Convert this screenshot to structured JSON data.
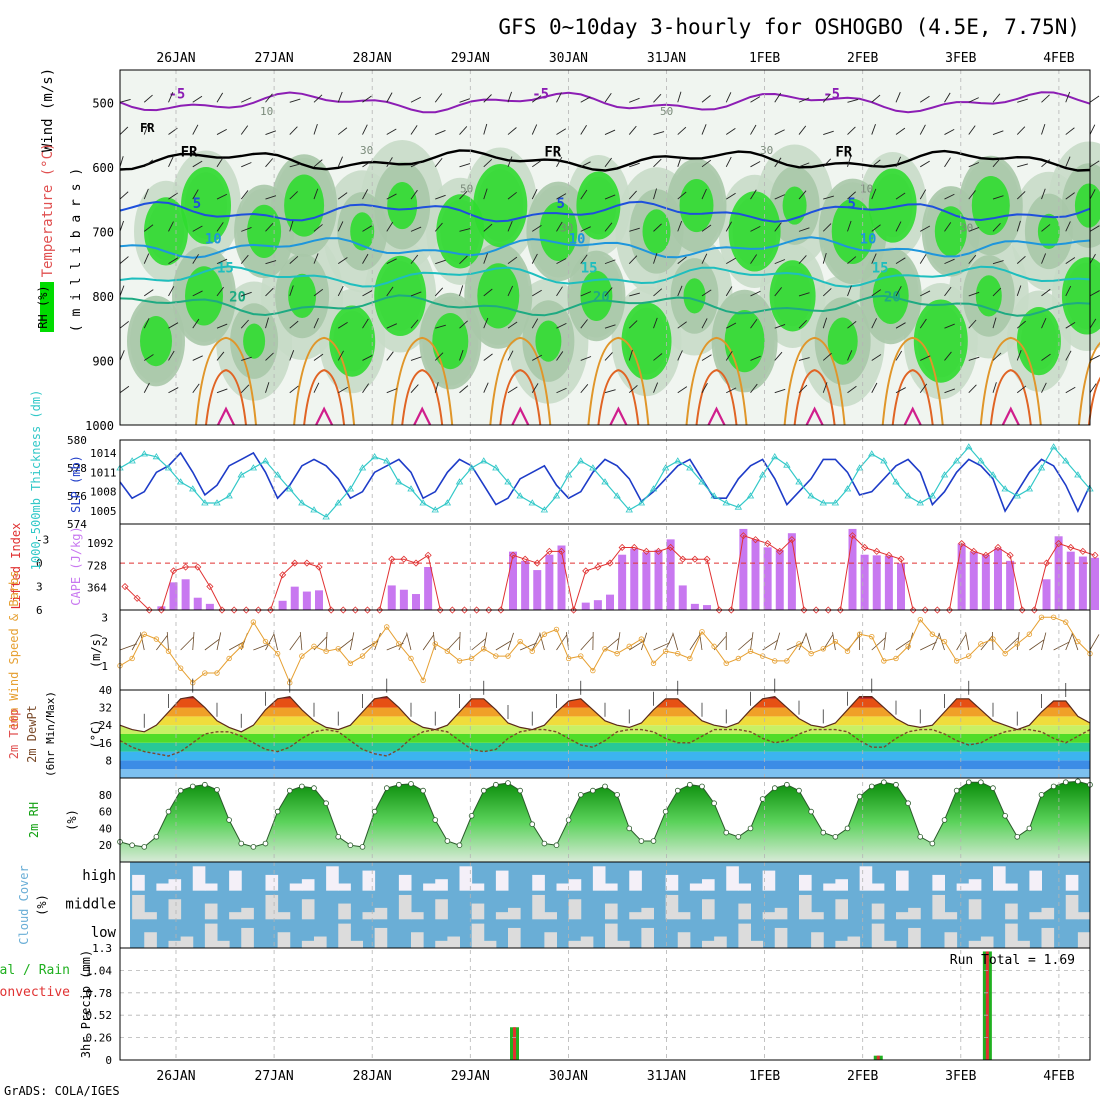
{
  "title": "GFS 0~10day 3-hourly for OSHOGBO (4.5E, 7.75N)",
  "footer": "GrADS: COLA/IGES",
  "dates": [
    "26JAN",
    "27JAN",
    "28JAN",
    "29JAN",
    "30JAN",
    "31JAN",
    "1FEB",
    "2FEB",
    "3FEB",
    "4FEB"
  ],
  "colors": {
    "frame": "#000000",
    "grid": "#b4b4b4",
    "rh_green": "#00dc00",
    "rh_mid": "#a0c8a0",
    "slp": "#1e3cc8",
    "thickness": "#32c8c8",
    "cape": "#c878f0",
    "lifted_index": "#e03232",
    "wind_speed": "#e6a032",
    "rh2m": "#10a010",
    "cloud_blue": "#6aaed6",
    "cloud_light": "#dcdcdc",
    "precip_total": "#20b020",
    "precip_conv": "#e03232"
  },
  "labels": {
    "upper_wind": "Wind (m/s)",
    "upper_temp": "Temperature (°C)",
    "upper_rh": "RH (%)",
    "upper_pressure": "( m i l l i b a r s )",
    "slp_axis": "SLP (mb)",
    "thickness_axis": "1000-500mb Thickness (dm)",
    "cape_axis": "CAPE (J/kg)",
    "li_axis": "Lifted Index",
    "wind10_axis": "10m Wind Speed & Barbs",
    "wind10_units": "(m/s)",
    "temp2m_axis": "2m Temp",
    "dewpt_axis": "2m DewPt",
    "minmax_axis": "(6hr Min/Max)",
    "temp2m_units": "(°C)",
    "rh2m_axis": "2m RH",
    "rh2m_units": "(%)",
    "cloud_axis": "Cloud Cover",
    "cloud_units": "(%)",
    "cloud_levels": [
      "high",
      "middle",
      "low"
    ],
    "precip_axis": "3hr Precip (mm)",
    "precip_total": "Total / Rain",
    "precip_conv": "Convective",
    "run_total": "Run Total = 1.69",
    "freezing": "FR"
  },
  "chart_data": [
    {
      "panel": "upper-air",
      "type": "heatmap",
      "ylabel": "( m i l l i b a r s )",
      "y_ticks": [
        500,
        600,
        700,
        800,
        900,
        1000
      ],
      "ylim": [
        1000,
        450
      ],
      "isotherms": [
        {
          "label": "-5",
          "mean_p": 500,
          "color": "#8c1eb4"
        },
        {
          "label": "FR",
          "mean_p": 590,
          "color": "#000000"
        },
        {
          "label": "5",
          "mean_p": 670,
          "color": "#1e50dc"
        },
        {
          "label": "10",
          "mean_p": 725,
          "color": "#1e96dc"
        },
        {
          "label": "15",
          "mean_p": 770,
          "color": "#1ebebe"
        },
        {
          "label": "20",
          "mean_p": 815,
          "color": "#1eaa82"
        }
      ],
      "rh_contour_labels": [
        "10",
        "30",
        "50",
        "30",
        "50",
        "30",
        "10",
        "30"
      ]
    },
    {
      "panel": "slp-thickness",
      "type": "line",
      "ylabel": "SLP (mb)",
      "y_ticks_left": [
        574,
        576,
        578,
        580
      ],
      "y_ticks_right": [
        1005,
        1008,
        1011,
        1014
      ],
      "series": [
        {
          "name": "SLP",
          "axis": "left-slp",
          "values": [
            1009.5,
            1007,
            1008,
            1011,
            1012,
            1014,
            1011,
            1007.5,
            1009,
            1012,
            1013,
            1014,
            1011,
            1007,
            1009,
            1012,
            1013,
            1012,
            1010,
            1007,
            1008,
            1011,
            1012,
            1013,
            1011,
            1007,
            1008,
            1011,
            1013,
            1012,
            1009,
            1006,
            1007,
            1010,
            1011,
            1012,
            1009,
            1007,
            1008,
            1011,
            1013,
            1012,
            1010,
            1006.5,
            1008,
            1010,
            1012,
            1013,
            1010,
            1007,
            1007,
            1010,
            1012,
            1013,
            1010,
            1006,
            1008,
            1010,
            1013,
            1013,
            1011,
            1007.5,
            1008,
            1010,
            1012,
            1013,
            1011,
            1006,
            1008,
            1011,
            1013,
            1012,
            1010,
            1005,
            1008,
            1011,
            1013,
            1012,
            1009,
            1005,
            1009
          ]
        },
        {
          "name": "Thickness",
          "axis": "left-thk",
          "values": [
            578,
            578.5,
            579,
            578.8,
            578,
            577,
            576.5,
            575.5,
            575.5,
            576,
            577.5,
            578,
            578.5,
            577.5,
            576.5,
            575.5,
            575,
            574.5,
            575.5,
            576.5,
            578,
            578.8,
            578.5,
            577,
            576.5,
            575.5,
            575,
            575.5,
            577,
            578,
            578.5,
            578,
            577,
            576,
            575.5,
            575,
            576,
            577.5,
            578.5,
            578,
            577,
            576,
            575,
            575.5,
            576.5,
            578,
            578.5,
            578,
            577,
            576,
            575.5,
            575.2,
            576,
            577.5,
            578.8,
            578.2,
            577,
            576,
            575.5,
            575.5,
            576.5,
            578,
            579,
            578.5,
            577,
            576,
            575.5,
            576,
            577.5,
            578.5,
            579.5,
            578.5,
            577.5,
            576.5,
            576,
            576.5,
            578,
            579.5,
            578.5,
            577.5,
            576.5
          ]
        }
      ]
    },
    {
      "panel": "cape-li",
      "type": "bar",
      "ylabel": "CAPE (J/kg)",
      "y_ticks_cape": [
        364,
        728,
        1092
      ],
      "y_ticks_li": [
        -3,
        0,
        3,
        6
      ],
      "series": [
        {
          "name": "CAPE",
          "values": [
            0,
            0,
            0,
            60,
            450,
            500,
            200,
            100,
            0,
            0,
            0,
            0,
            0,
            150,
            380,
            300,
            320,
            0,
            0,
            0,
            0,
            0,
            400,
            330,
            260,
            700,
            0,
            0,
            0,
            0,
            0,
            0,
            950,
            800,
            650,
            900,
            1050,
            0,
            120,
            160,
            250,
            900,
            1000,
            940,
            980,
            1150,
            400,
            100,
            80,
            0,
            0,
            1320,
            1150,
            1020,
            980,
            1250,
            0,
            0,
            0,
            0,
            1320,
            900,
            890,
            880,
            760,
            0,
            0,
            0,
            0,
            1080,
            950,
            900,
            1000,
            800,
            0,
            0,
            500,
            1200,
            950,
            870,
            850
          ]
        },
        {
          "name": "Lifted Index",
          "values": [
            3,
            4.5,
            6,
            6,
            1,
            0.5,
            0.5,
            3,
            6,
            6,
            6,
            6,
            6,
            1.5,
            0,
            0,
            0.5,
            6,
            6,
            6,
            6,
            6,
            -0.5,
            -0.5,
            0,
            -1,
            6,
            6,
            6,
            6,
            6,
            6,
            -1,
            -0.5,
            0,
            -1.5,
            -1.5,
            6,
            1,
            0.5,
            0,
            -2,
            -2,
            -1.5,
            -1.5,
            -2,
            -0.5,
            -0.5,
            -0.5,
            6,
            6,
            -3.5,
            -3,
            -2.5,
            -1.5,
            -3,
            6,
            6,
            6,
            6,
            -3.5,
            -2,
            -1.5,
            -1,
            -0.5,
            6,
            6,
            6,
            6,
            -2.5,
            -1.5,
            -1,
            -2,
            -1,
            6,
            6,
            0,
            -2.5,
            -2,
            -1.5,
            -1
          ]
        }
      ]
    },
    {
      "panel": "wind10m",
      "type": "line",
      "ylabel": "10m Wind Speed & Barbs",
      "y_ticks": [
        1,
        2,
        3
      ],
      "ylim": [
        0,
        3.3
      ],
      "series": [
        {
          "name": "Wind Speed",
          "values": [
            1.0,
            1.3,
            2.3,
            2.1,
            1.6,
            0.9,
            0.3,
            0.7,
            0.7,
            1.3,
            1.8,
            2.8,
            2.0,
            1.5,
            0.3,
            1.4,
            1.8,
            1.6,
            1.7,
            1.1,
            1.4,
            1.9,
            2.6,
            1.9,
            1.3,
            0.4,
            1.9,
            1.6,
            1.2,
            1.3,
            1.7,
            1.4,
            1.4,
            2.0,
            1.6,
            2.3,
            2.5,
            1.3,
            1.4,
            0.8,
            1.7,
            1.5,
            1.8,
            2.1,
            1.1,
            1.6,
            1.5,
            1.3,
            2.4,
            1.8,
            1.1,
            1.3,
            1.6,
            1.4,
            1.2,
            1.2,
            1.9,
            1.5,
            1.7,
            2.0,
            1.6,
            2.3,
            2.2,
            1.2,
            1.3,
            1.8,
            2.9,
            2.3,
            2.0,
            1.2,
            1.4,
            1.9,
            2.1,
            1.5,
            1.9,
            2.3,
            3.0,
            3.0,
            2.8,
            2.0,
            1.5
          ]
        }
      ]
    },
    {
      "panel": "temp2m",
      "type": "area",
      "ylabel": "2m Temp",
      "y_ticks": [
        8,
        16,
        24,
        32,
        40
      ],
      "ylim": [
        0,
        40
      ],
      "series": [
        {
          "name": "2m Temp",
          "values": [
            24,
            22,
            21,
            24,
            30,
            36,
            37,
            32,
            26,
            23,
            21,
            24,
            31,
            36,
            37,
            31,
            26,
            23,
            22,
            24,
            30,
            36,
            37,
            32,
            26,
            23,
            22,
            24,
            30,
            36,
            36,
            31,
            25,
            23,
            22,
            24,
            30,
            35,
            36,
            31,
            26,
            24,
            23,
            25,
            31,
            36,
            36,
            31,
            26,
            24,
            23,
            25,
            31,
            36,
            37,
            32,
            27,
            24,
            23,
            25,
            31,
            37,
            37,
            32,
            27,
            24,
            23,
            24,
            30,
            36,
            36,
            31,
            26,
            24,
            22,
            24,
            30,
            35,
            35,
            28,
            25
          ]
        },
        {
          "name": "2m DewPt",
          "values": [
            17,
            14,
            12,
            11,
            10,
            12,
            16,
            20,
            21,
            21,
            19,
            16,
            13,
            12,
            14,
            18,
            21,
            22,
            21,
            17,
            13,
            11,
            10,
            13,
            18,
            21,
            22,
            21,
            17,
            13,
            12,
            13,
            18,
            21,
            22,
            22,
            21,
            18,
            15,
            14,
            17,
            21,
            22,
            22,
            21,
            18,
            16,
            16,
            19,
            22,
            22,
            22,
            21,
            18,
            16,
            17,
            20,
            22,
            22,
            22,
            21,
            17,
            14,
            14,
            18,
            21,
            22,
            22,
            20,
            17,
            15,
            16,
            19,
            21,
            22,
            22,
            21,
            18,
            16,
            19,
            22
          ]
        }
      ]
    },
    {
      "panel": "rh2m",
      "type": "area",
      "ylabel": "2m RH",
      "y_ticks": [
        20,
        40,
        60,
        80
      ],
      "ylim": [
        0,
        100
      ],
      "series": [
        {
          "name": "2m RH",
          "values": [
            24,
            20,
            18,
            30,
            60,
            85,
            90,
            92,
            86,
            50,
            22,
            18,
            22,
            60,
            85,
            90,
            88,
            70,
            30,
            20,
            18,
            60,
            88,
            92,
            93,
            85,
            50,
            25,
            20,
            55,
            85,
            92,
            94,
            85,
            45,
            22,
            20,
            50,
            80,
            85,
            90,
            80,
            40,
            25,
            25,
            60,
            85,
            92,
            90,
            70,
            35,
            30,
            40,
            75,
            88,
            92,
            85,
            60,
            35,
            30,
            40,
            78,
            90,
            95,
            92,
            70,
            30,
            22,
            50,
            85,
            95,
            95,
            88,
            55,
            30,
            40,
            80,
            90,
            95,
            96,
            92
          ]
        }
      ]
    },
    {
      "panel": "cloud",
      "type": "heatmap",
      "ylabel": "Cloud Cover",
      "categories": [
        "high",
        "middle",
        "low"
      ]
    },
    {
      "panel": "precip",
      "type": "bar",
      "ylabel": "3hr Precip (mm)",
      "y_ticks": [
        0,
        0.26,
        0.52,
        0.78,
        1.04,
        1.3
      ],
      "ylim": [
        0,
        1.3
      ],
      "bars": [
        {
          "step": 32,
          "total": 0.38,
          "convective": 0.38
        },
        {
          "step": 62,
          "total": 0.05,
          "convective": 0.05
        },
        {
          "step": 71,
          "total": 1.26,
          "convective": 1.26
        }
      ]
    }
  ]
}
